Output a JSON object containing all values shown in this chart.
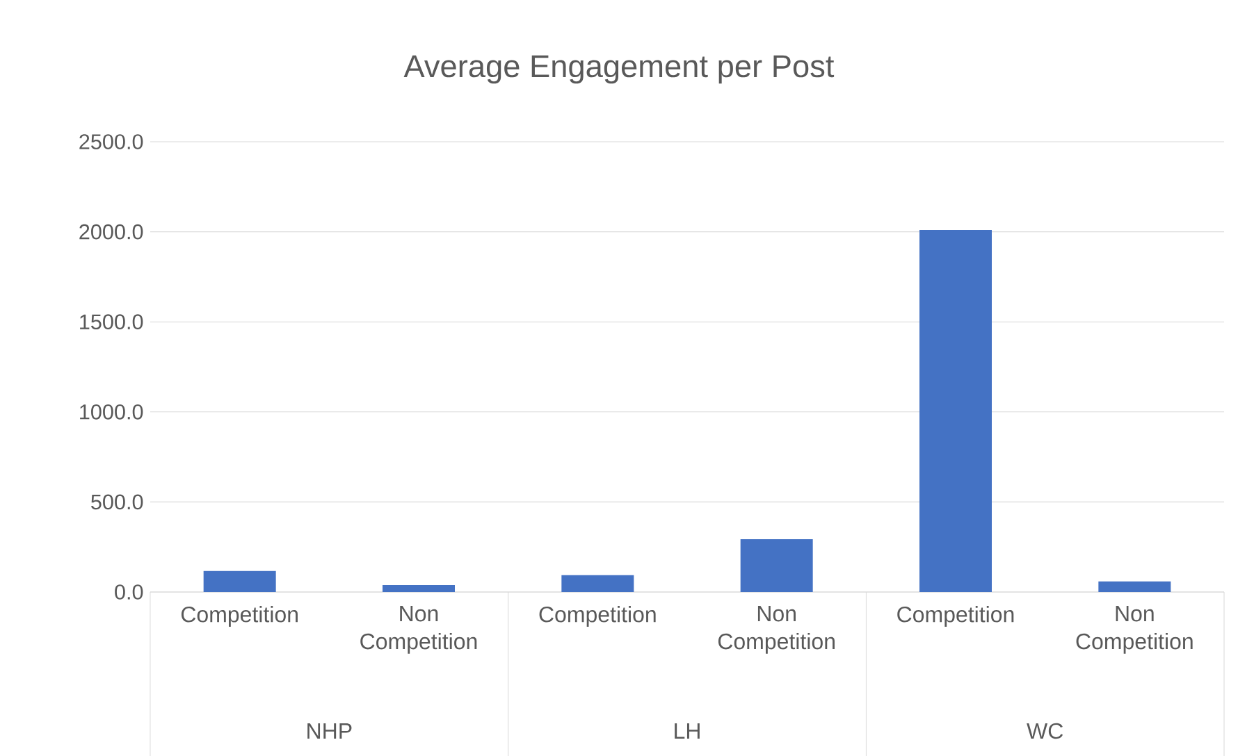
{
  "chart_data": {
    "type": "bar",
    "title": "Average Engagement per Post",
    "categories": [
      "Competition",
      "Non Competition",
      "Competition",
      "Non Competition",
      "Competition",
      "Non Competition"
    ],
    "values": [
      117,
      39,
      94,
      293,
      2010,
      59
    ],
    "color": "#4472c4",
    "annotations": [
      "NHP",
      "LH",
      "WC"
    ],
    "ylim": [
      0,
      2500
    ],
    "yticks": [
      {
        "value": 0,
        "label": "0.0"
      },
      {
        "value": 500,
        "label": "500.0"
      },
      {
        "value": 1000,
        "label": "1000.0"
      },
      {
        "value": 1500,
        "label": "1500.0"
      },
      {
        "value": 2000,
        "label": "2000.0"
      },
      {
        "value": 2500,
        "label": "2500.0"
      }
    ],
    "grid": "y"
  }
}
